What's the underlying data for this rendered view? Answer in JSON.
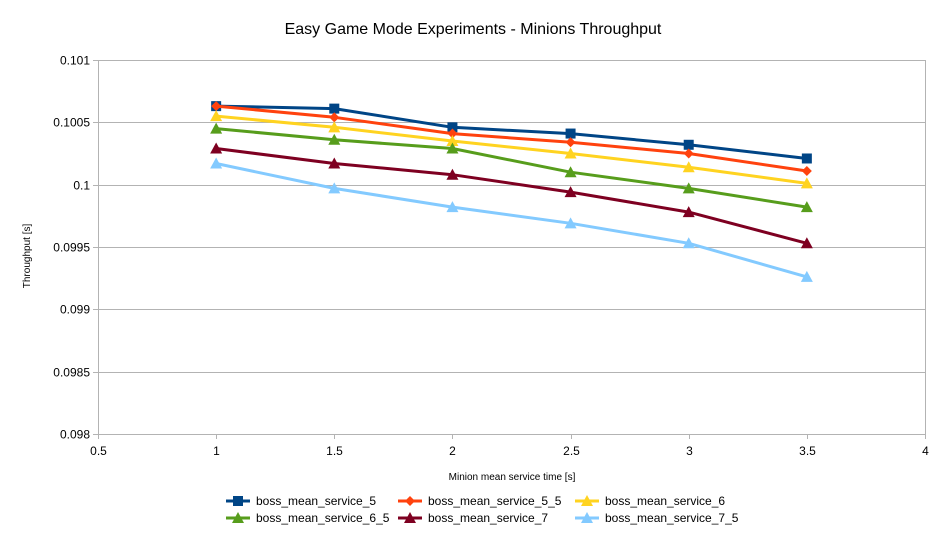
{
  "chart_data": {
    "type": "line",
    "title": "Easy Game Mode Experiments - Minions Throughput",
    "xlabel": "Minion mean service time [s]",
    "ylabel": "Throughput [s]",
    "xlim": [
      0.5,
      4
    ],
    "ylim": [
      0.098,
      0.101
    ],
    "xticks": [
      0.5,
      1,
      1.5,
      2,
      2.5,
      3,
      3.5,
      4
    ],
    "xtick_labels": [
      "0.5",
      "1",
      "1.5",
      "2",
      "2.5",
      "3",
      "3.5",
      "4"
    ],
    "yticks": [
      0.098,
      0.0985,
      0.099,
      0.0995,
      0.1,
      0.1005,
      0.101
    ],
    "ytick_labels": [
      "0.098",
      "0.0985",
      "0.099",
      "0.0995",
      "0.1",
      "0.1005",
      "0.101"
    ],
    "grid": "horizontal",
    "legend_position": "bottom",
    "x": [
      1,
      1.5,
      2,
      2.5,
      3,
      3.5
    ],
    "series": [
      {
        "name": "boss_mean_service_5",
        "color": "#004586",
        "marker": "square",
        "values": [
          0.10063,
          0.10061,
          0.10046,
          0.10041,
          0.10032,
          0.10021
        ]
      },
      {
        "name": "boss_mean_service_5_5",
        "color": "#ff420e",
        "marker": "diamond",
        "values": [
          0.10063,
          0.10054,
          0.10041,
          0.10034,
          0.10025,
          0.10011
        ]
      },
      {
        "name": "boss_mean_service_6",
        "color": "#ffd320",
        "marker": "triangle",
        "values": [
          0.10055,
          0.10046,
          0.10035,
          0.10025,
          0.10014,
          0.10001
        ]
      },
      {
        "name": "boss_mean_service_6_5",
        "color": "#579d1c",
        "marker": "triangle",
        "values": [
          0.10045,
          0.10036,
          0.10029,
          0.1001,
          0.09997,
          0.09982
        ]
      },
      {
        "name": "boss_mean_service_7",
        "color": "#7e0021",
        "marker": "triangle",
        "values": [
          0.10029,
          0.10017,
          0.10008,
          0.09994,
          0.09978,
          0.09953
        ]
      },
      {
        "name": "boss_mean_service_7_5",
        "color": "#83caff",
        "marker": "triangle",
        "values": [
          0.10017,
          0.09997,
          0.09982,
          0.09969,
          0.09953,
          0.09926
        ]
      }
    ]
  }
}
